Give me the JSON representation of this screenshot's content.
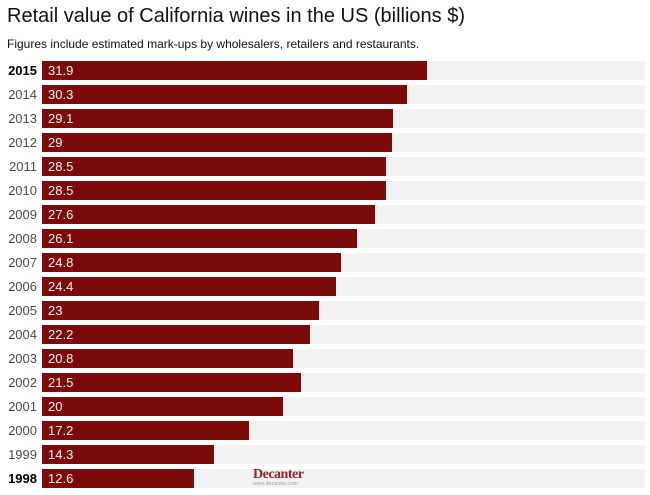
{
  "header": {
    "title": "Retail value of California wines in the US (billions $)",
    "subtitle": "Figures include estimated mark-ups by wholesalers, retailers and restaurants."
  },
  "chart_data": {
    "type": "bar",
    "orientation": "horizontal",
    "title": "Retail value of California wines in the US (billions $)",
    "subtitle": "Figures include estimated mark-ups by wholesalers, retailers and restaurants.",
    "categories": [
      "2015",
      "2014",
      "2013",
      "2012",
      "2011",
      "2010",
      "2009",
      "2008",
      "2007",
      "2006",
      "2005",
      "2004",
      "2003",
      "2002",
      "2001",
      "2000",
      "1999",
      "1998"
    ],
    "values": [
      31.9,
      30.3,
      29.1,
      29,
      28.5,
      28.5,
      27.6,
      26.1,
      24.8,
      24.4,
      23,
      22.2,
      20.8,
      21.5,
      20,
      17.2,
      14.3,
      12.6
    ],
    "value_labels": [
      "31.9",
      "30.3",
      "29.1",
      "29",
      "28.5",
      "28.5",
      "27.6",
      "26.1",
      "24.8",
      "24.4",
      "23",
      "22.2",
      "20.8",
      "21.5",
      "20",
      "17.2",
      "14.3",
      "12.6"
    ],
    "xlim": [
      0,
      50
    ],
    "bold_categories": [
      "2015",
      "1998"
    ],
    "bar_color": "#7b0b0b",
    "track_color": "#f2f2f2",
    "value_label_position": "inside-left",
    "grid": false,
    "legend": false
  },
  "branding": {
    "logo_text": "Decanter",
    "logo_url": "www.decanter.com",
    "logo_color": "#8e222e"
  }
}
